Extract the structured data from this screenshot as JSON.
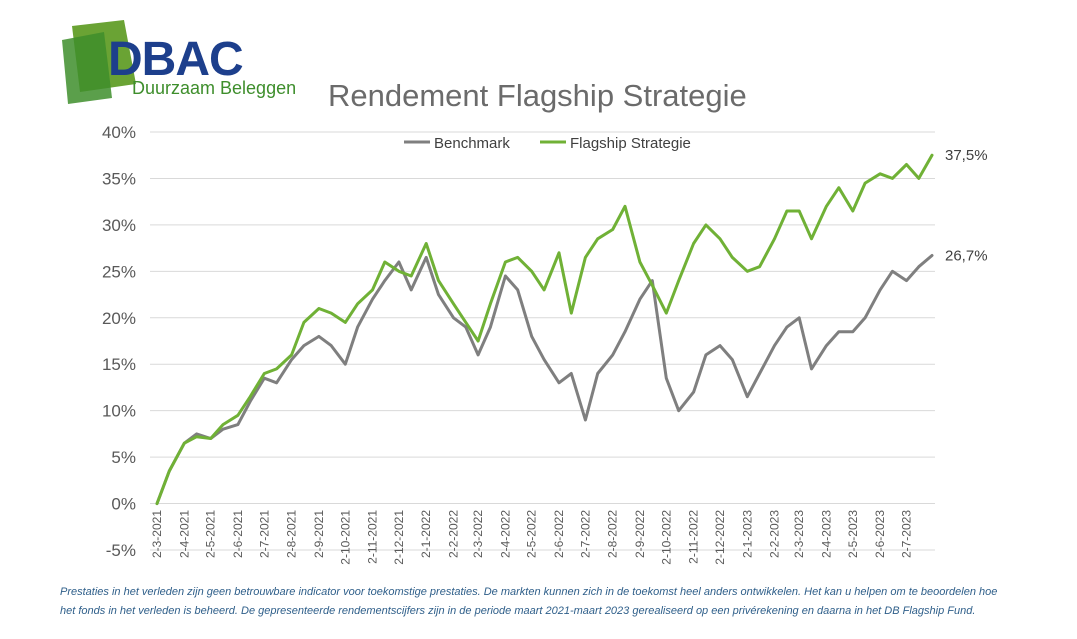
{
  "logo": {
    "wordmark": "DBAC",
    "tagline": "Duurzaam Beleggen"
  },
  "colors": {
    "benchmark": "#7f7f7f",
    "flagship": "#70b136",
    "brand_blue": "#1d3f8c",
    "brand_green": "#6aa334",
    "grid": "#d9d9d9",
    "footnote": "#2f5f8a"
  },
  "footnote": {
    "line1": "Prestaties in het verleden zijn geen betrouwbare indicator voor toekomstige prestaties. De markten kunnen zich in de toekomst heel anders ontwikkelen. Het kan u helpen om te beoordelen hoe",
    "line2": "het fonds in het verleden is beheerd. De gepresenteerde rendementscijfers zijn in de periode maart 2021-maart 2023 gerealiseerd op een privérekening en daarna in het DB Flagship Fund."
  },
  "chart_data": {
    "type": "line",
    "title": "Rendement Flagship Strategie",
    "xlabel": "",
    "ylabel": "",
    "ylim": [
      -5,
      40
    ],
    "y_ticks": [
      "-5%",
      "0%",
      "5%",
      "10%",
      "15%",
      "20%",
      "25%",
      "30%",
      "35%",
      "40%"
    ],
    "grid": "horizontal",
    "legend": "top-center",
    "x_ticks": [
      "2-3-2021",
      "2-4-2021",
      "2-5-2021",
      "2-6-2021",
      "2-7-2021",
      "2-8-2021",
      "2-9-2021",
      "2-10-2021",
      "2-11-2021",
      "2-12-2021",
      "2-1-2022",
      "2-2-2022",
      "2-3-2022",
      "2-4-2022",
      "2-5-2022",
      "2-6-2022",
      "2-7-2022",
      "2-8-2022",
      "2-9-2022",
      "2-10-2022",
      "2-11-2022",
      "2-12-2022",
      "2-1-2023",
      "2-2-2023",
      "2-3-2023",
      "2-4-2023",
      "2-5-2023",
      "2-6-2023",
      "2-7-2023"
    ],
    "x": [
      "2-3-2021",
      "16-3-2021",
      "2-4-2021",
      "16-4-2021",
      "2-5-2021",
      "16-5-2021",
      "2-6-2021",
      "16-6-2021",
      "2-7-2021",
      "16-7-2021",
      "2-8-2021",
      "16-8-2021",
      "2-9-2021",
      "16-9-2021",
      "2-10-2021",
      "16-10-2021",
      "2-11-2021",
      "16-11-2021",
      "2-12-2021",
      "16-12-2021",
      "2-1-2022",
      "16-1-2022",
      "2-2-2022",
      "16-2-2022",
      "2-3-2022",
      "16-3-2022",
      "2-4-2022",
      "16-4-2022",
      "2-5-2022",
      "16-5-2022",
      "2-6-2022",
      "16-6-2022",
      "2-7-2022",
      "16-7-2022",
      "2-8-2022",
      "16-8-2022",
      "2-9-2022",
      "16-9-2022",
      "2-10-2022",
      "16-10-2022",
      "2-11-2022",
      "16-11-2022",
      "2-12-2022",
      "16-12-2022",
      "2-1-2023",
      "16-1-2023",
      "2-2-2023",
      "16-2-2023",
      "2-3-2023",
      "16-3-2023",
      "2-4-2023",
      "16-4-2023",
      "2-5-2023",
      "16-5-2023",
      "2-6-2023",
      "16-6-2023",
      "2-7-2023",
      "16-7-2023",
      "31-7-2023"
    ],
    "series": [
      {
        "name": "Benchmark",
        "color": "#7f7f7f",
        "end_label": "26,7%",
        "values": [
          0.0,
          3.5,
          6.5,
          7.5,
          7.0,
          8.0,
          8.5,
          11.0,
          13.5,
          13.0,
          15.5,
          17.0,
          18.0,
          17.0,
          15.0,
          19.0,
          22.0,
          24.0,
          26.0,
          23.0,
          26.5,
          22.5,
          20.0,
          19.0,
          16.0,
          19.0,
          24.5,
          23.0,
          18.0,
          15.5,
          13.0,
          14.0,
          9.0,
          14.0,
          16.0,
          18.5,
          22.0,
          24.0,
          13.5,
          10.0,
          12.0,
          16.0,
          17.0,
          15.5,
          11.5,
          14.0,
          17.0,
          19.0,
          20.0,
          14.5,
          17.0,
          18.5,
          18.5,
          20.0,
          23.0,
          25.0,
          24.0,
          25.5,
          26.7
        ]
      },
      {
        "name": "Flagship Strategie",
        "color": "#70b136",
        "end_label": "37,5%",
        "values": [
          0.0,
          3.5,
          6.5,
          7.2,
          7.0,
          8.5,
          9.5,
          11.5,
          14.0,
          14.5,
          16.0,
          19.5,
          21.0,
          20.5,
          19.5,
          21.5,
          23.0,
          26.0,
          25.0,
          24.5,
          28.0,
          24.0,
          21.5,
          19.5,
          17.5,
          21.5,
          26.0,
          26.5,
          25.0,
          23.0,
          27.0,
          20.5,
          26.5,
          28.5,
          29.5,
          32.0,
          26.0,
          23.5,
          20.5,
          24.0,
          28.0,
          30.0,
          28.5,
          26.5,
          25.0,
          25.5,
          28.5,
          31.5,
          31.5,
          28.5,
          32.0,
          34.0,
          31.5,
          34.5,
          35.5,
          35.0,
          36.5,
          35.0,
          37.5
        ]
      }
    ]
  }
}
